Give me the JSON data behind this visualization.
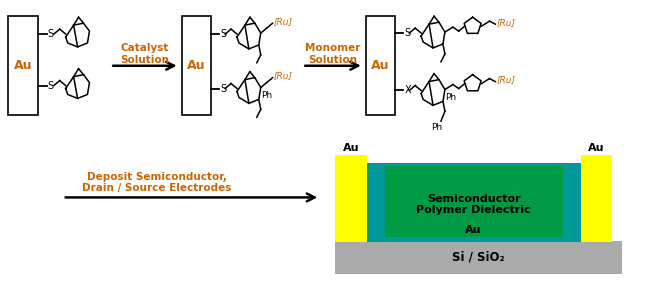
{
  "bg_color": "#ffffff",
  "label_color": "#cc6600",
  "text_color": "#000000",
  "au_text_color": "#cc6600",
  "yellow_color": "#ffff00",
  "teal_color": "#009999",
  "green_color": "#009944",
  "gray_color": "#aaaaaa",
  "catalyst_label": "Catalyst\nSolution",
  "monomer_label": "Monomer\nSolution",
  "deposit_label": "Deposit Semiconductor,\nDrain / Source Electrodes",
  "semiconductor_label": "Semiconductor\nPolymer Dielectric",
  "si_label": "Si / SiO₂",
  "au_label": "Au",
  "figsize": [
    6.71,
    2.81
  ],
  "dpi": 100
}
